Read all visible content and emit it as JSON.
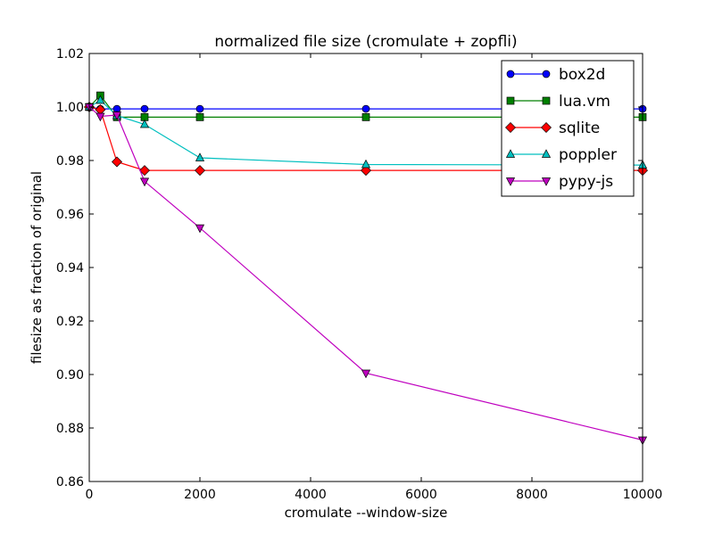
{
  "chart_data": {
    "type": "line",
    "title": "normalized file size (cromulate + zopfli)",
    "xlabel": "cromulate --window-size",
    "ylabel": "filesize as fraction of original",
    "xlim": [
      0,
      10000
    ],
    "ylim": [
      0.86,
      1.02
    ],
    "xticks": [
      0,
      2000,
      4000,
      6000,
      8000,
      10000
    ],
    "yticks": [
      0.86,
      0.88,
      0.9,
      0.92,
      0.94,
      0.96,
      0.98,
      1.0,
      1.02
    ],
    "xtick_labels": [
      "0",
      "2000",
      "4000",
      "6000",
      "8000",
      "10000"
    ],
    "ytick_labels": [
      "0.86",
      "0.88",
      "0.90",
      "0.92",
      "0.94",
      "0.96",
      "0.98",
      "1.00",
      "1.02"
    ],
    "grid": false,
    "legend_position": "top-right",
    "x": [
      0,
      200,
      500,
      1000,
      2000,
      5000,
      10000
    ],
    "series": [
      {
        "name": "box2d",
        "color": "#0000ff",
        "marker": "circle",
        "values": [
          1.0,
          0.9993,
          0.9993,
          0.9993,
          0.9993,
          0.9993,
          0.9993
        ]
      },
      {
        "name": "lua.vm",
        "color": "#008000",
        "marker": "square",
        "values": [
          1.0,
          1.0043,
          0.9962,
          0.9962,
          0.9962,
          0.9962,
          0.9962
        ]
      },
      {
        "name": "sqlite",
        "color": "#ff0000",
        "marker": "diamond",
        "values": [
          1.0,
          0.999,
          0.9795,
          0.9763,
          0.9763,
          0.9763,
          0.9763
        ]
      },
      {
        "name": "poppler",
        "color": "#00bfbf",
        "marker": "triangle-up",
        "values": [
          1.0,
          1.0025,
          0.9968,
          0.9935,
          0.981,
          0.9785,
          0.9783
        ]
      },
      {
        "name": "pypy-js",
        "color": "#bf00bf",
        "marker": "triangle-down",
        "values": [
          1.0,
          0.9965,
          0.997,
          0.9722,
          0.9548,
          0.9005,
          0.8755
        ]
      }
    ]
  }
}
